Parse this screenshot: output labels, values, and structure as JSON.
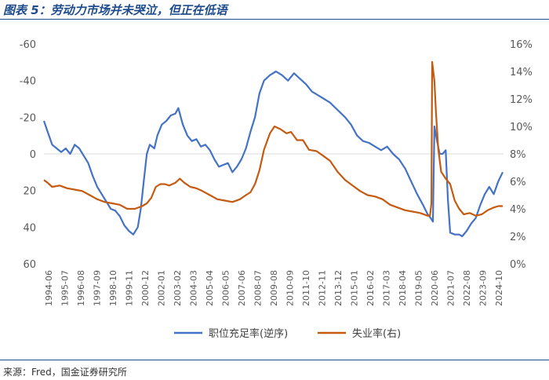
{
  "header": {
    "title": "图表 5：劳动力市场并未哭泣，但正在低语"
  },
  "footer": {
    "source": "来源：Fred，国金证券研究所"
  },
  "colors": {
    "series1": "#4472C4",
    "series2": "#C55A11",
    "title": "#1e4c8c"
  },
  "chart_data": {
    "type": "line",
    "title": "",
    "xlabel": "",
    "y_left": {
      "ticks": [
        "-60",
        "-40",
        "-20",
        "0",
        "20",
        "40",
        "60"
      ],
      "range": [
        -60,
        60
      ],
      "inverted": true,
      "grid": false
    },
    "y_right": {
      "ticks": [
        "16%",
        "14%",
        "12%",
        "10%",
        "8%",
        "6%",
        "4%",
        "2%",
        "0%"
      ],
      "range": [
        0,
        16
      ]
    },
    "x_ticks": [
      "1994-06",
      "1995-07",
      "1996-08",
      "1997-09",
      "1998-10",
      "1999-11",
      "2000-12",
      "2002-01",
      "2003-02",
      "2004-03",
      "2005-04",
      "2006-05",
      "2007-06",
      "2008-07",
      "2009-08",
      "2010-09",
      "2011-10",
      "2012-11",
      "2013-12",
      "2015-01",
      "2016-02",
      "2017-03",
      "2018-04",
      "2019-05",
      "2020-06",
      "2021-07",
      "2022-08",
      "2023-09",
      "2024-10"
    ],
    "legend": {
      "position": "bottom"
    },
    "series": [
      {
        "name": "职位充足率(逆序)",
        "axis": "left",
        "points": [
          [
            1994.45,
            -18
          ],
          [
            1994.7,
            -12
          ],
          [
            1995.0,
            -5
          ],
          [
            1995.3,
            -3
          ],
          [
            1995.6,
            -1
          ],
          [
            1995.9,
            -3
          ],
          [
            1996.2,
            0
          ],
          [
            1996.5,
            -5
          ],
          [
            1996.8,
            -3
          ],
          [
            1997.1,
            1
          ],
          [
            1997.4,
            5
          ],
          [
            1997.7,
            12
          ],
          [
            1998.0,
            18
          ],
          [
            1998.3,
            22
          ],
          [
            1998.6,
            26
          ],
          [
            1998.9,
            30
          ],
          [
            1999.2,
            31
          ],
          [
            1999.5,
            34
          ],
          [
            1999.8,
            39
          ],
          [
            2000.1,
            42
          ],
          [
            2000.4,
            44
          ],
          [
            2000.7,
            40
          ],
          [
            2000.9,
            30
          ],
          [
            2001.1,
            15
          ],
          [
            2001.3,
            0
          ],
          [
            2001.5,
            -5
          ],
          [
            2001.8,
            -3
          ],
          [
            2002.0,
            -10
          ],
          [
            2002.3,
            -16
          ],
          [
            2002.6,
            -18
          ],
          [
            2002.9,
            -21
          ],
          [
            2003.2,
            -22
          ],
          [
            2003.4,
            -25
          ],
          [
            2003.7,
            -16
          ],
          [
            2004.0,
            -10
          ],
          [
            2004.3,
            -7
          ],
          [
            2004.6,
            -8
          ],
          [
            2004.9,
            -4
          ],
          [
            2005.2,
            -5
          ],
          [
            2005.5,
            -2
          ],
          [
            2005.8,
            3
          ],
          [
            2006.1,
            7
          ],
          [
            2006.4,
            6
          ],
          [
            2006.7,
            5
          ],
          [
            2007.0,
            10
          ],
          [
            2007.3,
            7
          ],
          [
            2007.6,
            3
          ],
          [
            2007.9,
            -3
          ],
          [
            2008.2,
            -12
          ],
          [
            2008.5,
            -20
          ],
          [
            2008.8,
            -33
          ],
          [
            2009.1,
            -40
          ],
          [
            2009.5,
            -43
          ],
          [
            2009.9,
            -45
          ],
          [
            2010.3,
            -43
          ],
          [
            2010.7,
            -40
          ],
          [
            2011.1,
            -44
          ],
          [
            2011.5,
            -41
          ],
          [
            2011.9,
            -38
          ],
          [
            2012.3,
            -34
          ],
          [
            2012.7,
            -32
          ],
          [
            2013.1,
            -30
          ],
          [
            2013.5,
            -28
          ],
          [
            2014.0,
            -24
          ],
          [
            2014.5,
            -20
          ],
          [
            2014.9,
            -16
          ],
          [
            2015.3,
            -10
          ],
          [
            2015.7,
            -7
          ],
          [
            2016.1,
            -6
          ],
          [
            2016.5,
            -4
          ],
          [
            2016.9,
            -2
          ],
          [
            2017.3,
            -4
          ],
          [
            2017.7,
            0
          ],
          [
            2018.1,
            3
          ],
          [
            2018.5,
            8
          ],
          [
            2018.9,
            15
          ],
          [
            2019.3,
            22
          ],
          [
            2019.7,
            28
          ],
          [
            2020.0,
            33
          ],
          [
            2020.2,
            35
          ],
          [
            2020.35,
            37
          ],
          [
            2020.45,
            -15
          ],
          [
            2020.6,
            -8
          ],
          [
            2020.8,
            0
          ],
          [
            2021.0,
            0
          ],
          [
            2021.2,
            -2
          ],
          [
            2021.35,
            25
          ],
          [
            2021.5,
            43
          ],
          [
            2021.8,
            44
          ],
          [
            2022.1,
            44
          ],
          [
            2022.3,
            45
          ],
          [
            2022.6,
            42
          ],
          [
            2022.9,
            38
          ],
          [
            2023.2,
            35
          ],
          [
            2023.5,
            28
          ],
          [
            2023.8,
            22
          ],
          [
            2024.1,
            18
          ],
          [
            2024.4,
            22
          ],
          [
            2024.7,
            15
          ],
          [
            2025.0,
            10
          ]
        ]
      },
      {
        "name": "失业率(右)",
        "axis": "right",
        "points": [
          [
            1994.45,
            6.1
          ],
          [
            1994.7,
            5.9
          ],
          [
            1995.0,
            5.6
          ],
          [
            1995.5,
            5.7
          ],
          [
            1996.0,
            5.5
          ],
          [
            1996.5,
            5.4
          ],
          [
            1997.0,
            5.3
          ],
          [
            1997.5,
            5.0
          ],
          [
            1998.0,
            4.7
          ],
          [
            1998.5,
            4.5
          ],
          [
            1999.0,
            4.4
          ],
          [
            1999.5,
            4.3
          ],
          [
            2000.0,
            4.0
          ],
          [
            2000.5,
            4.0
          ],
          [
            2001.0,
            4.2
          ],
          [
            2001.3,
            4.4
          ],
          [
            2001.6,
            4.8
          ],
          [
            2001.9,
            5.6
          ],
          [
            2002.2,
            5.8
          ],
          [
            2002.5,
            5.8
          ],
          [
            2002.8,
            5.7
          ],
          [
            2003.2,
            5.9
          ],
          [
            2003.5,
            6.2
          ],
          [
            2003.8,
            5.9
          ],
          [
            2004.2,
            5.6
          ],
          [
            2004.6,
            5.5
          ],
          [
            2005.0,
            5.3
          ],
          [
            2005.5,
            5.0
          ],
          [
            2006.0,
            4.7
          ],
          [
            2006.5,
            4.6
          ],
          [
            2007.0,
            4.5
          ],
          [
            2007.5,
            4.7
          ],
          [
            2007.9,
            5.0
          ],
          [
            2008.2,
            5.2
          ],
          [
            2008.5,
            5.8
          ],
          [
            2008.8,
            6.8
          ],
          [
            2009.1,
            8.3
          ],
          [
            2009.5,
            9.5
          ],
          [
            2009.8,
            10.0
          ],
          [
            2010.2,
            9.8
          ],
          [
            2010.6,
            9.5
          ],
          [
            2010.9,
            9.6
          ],
          [
            2011.3,
            9.0
          ],
          [
            2011.7,
            9.0
          ],
          [
            2012.1,
            8.3
          ],
          [
            2012.6,
            8.2
          ],
          [
            2013.0,
            7.9
          ],
          [
            2013.5,
            7.5
          ],
          [
            2014.0,
            6.7
          ],
          [
            2014.5,
            6.1
          ],
          [
            2015.0,
            5.7
          ],
          [
            2015.5,
            5.3
          ],
          [
            2016.0,
            5.0
          ],
          [
            2016.5,
            4.9
          ],
          [
            2017.0,
            4.7
          ],
          [
            2017.5,
            4.3
          ],
          [
            2018.0,
            4.1
          ],
          [
            2018.5,
            3.9
          ],
          [
            2019.0,
            3.8
          ],
          [
            2019.5,
            3.7
          ],
          [
            2020.0,
            3.5
          ],
          [
            2020.15,
            3.5
          ],
          [
            2020.25,
            4.4
          ],
          [
            2020.3,
            14.7
          ],
          [
            2020.45,
            13.3
          ],
          [
            2020.55,
            11.1
          ],
          [
            2020.7,
            8.4
          ],
          [
            2020.9,
            6.7
          ],
          [
            2021.2,
            6.2
          ],
          [
            2021.5,
            5.8
          ],
          [
            2021.8,
            4.6
          ],
          [
            2022.1,
            4.0
          ],
          [
            2022.4,
            3.6
          ],
          [
            2022.8,
            3.7
          ],
          [
            2023.2,
            3.5
          ],
          [
            2023.6,
            3.6
          ],
          [
            2024.0,
            3.9
          ],
          [
            2024.4,
            4.1
          ],
          [
            2024.7,
            4.2
          ],
          [
            2025.0,
            4.2
          ]
        ]
      }
    ]
  }
}
